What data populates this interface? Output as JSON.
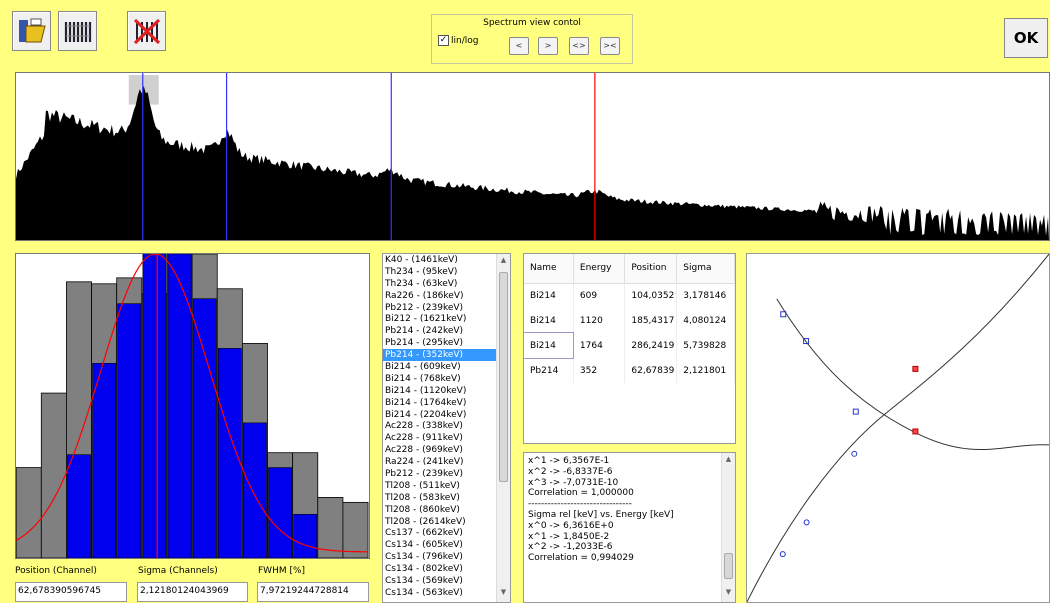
{
  "toolbar": {
    "buttons": [
      {
        "name": "open-file-icon"
      },
      {
        "name": "calibration-lines-icon"
      },
      {
        "name": "clear-calibration-icon"
      }
    ]
  },
  "spectrum_control": {
    "title": "Spectrum view contol",
    "linlog_label": "lin/log",
    "linlog_checked": true,
    "nav_buttons": [
      "<",
      ">",
      "<>",
      "><"
    ]
  },
  "ok_label": "OK",
  "colors": {
    "background": "#ffff80",
    "marker_blue": "#3333ff",
    "marker_red": "#ff0000",
    "fit_blue": "#0000ee",
    "fit_gray": "#808080"
  },
  "fit": {
    "position_label": "Position (Channel)",
    "sigma_label": "Sigma (Channels)",
    "fwhm_label": "FWHM [%]",
    "position_value": "62,678390596745",
    "sigma_value": "2,12180124043969",
    "fwhm_value": "7,97219244728814"
  },
  "isotopes": {
    "items": [
      "K40 - (1461keV)",
      "Th234 - (95keV)",
      "Th234 - (63keV)",
      "Ra226 - (186keV)",
      "Pb212 - (239keV)",
      "Bi212 - (1621keV)",
      "Pb214 - (242keV)",
      "Pb214 - (295keV)",
      "Pb214 - (352keV)",
      "Bi214 - (609keV)",
      "Bi214 - (768keV)",
      "Bi214 - (1120keV)",
      "Bi214 - (1764keV)",
      "Bi214 - (2204keV)",
      "Ac228 - (338keV)",
      "Ac228 - (911keV)",
      "Ac228 - (969keV)",
      "Ra224 - (241keV)",
      "Pb212 - (239keV)",
      "Tl208 - (511keV)",
      "Tl208 - (583keV)",
      "Tl208 - (860keV)",
      "Tl208 - (2614keV)",
      "Cs137 - (662keV)",
      "Cs134 - (605keV)",
      "Cs134 - (796keV)",
      "Cs134 - (802keV)",
      "Cs134 - (569keV)",
      "Cs134 - (563keV)"
    ],
    "selected_index": 8
  },
  "peaks": {
    "headers": [
      "Name",
      "Energy",
      "Position",
      "Sigma"
    ],
    "rows": [
      [
        "Bi214",
        "609",
        "104,0352",
        "3,178146"
      ],
      [
        "Bi214",
        "1120",
        "185,4317",
        "4,080124"
      ],
      [
        "Bi214",
        "1764",
        "286,2419",
        "5,739828"
      ],
      [
        "Pb214",
        "352",
        "62,67839",
        "2,121801"
      ]
    ]
  },
  "results": {
    "lines": [
      "x^1 -> 6,3567E-1",
      "x^2 -> -6,8337E-6",
      "x^3 -> -7,0731E-10",
      "Correlation = 1,000000",
      "--------------------------------",
      "Sigma rel [keV] vs. Energy [keV]",
      "x^0 -> 6,3616E+0",
      "x^1 -> 1,8450E-2",
      "x^2 -> -1,2033E-6",
      "Correlation = 0,994029"
    ]
  }
}
